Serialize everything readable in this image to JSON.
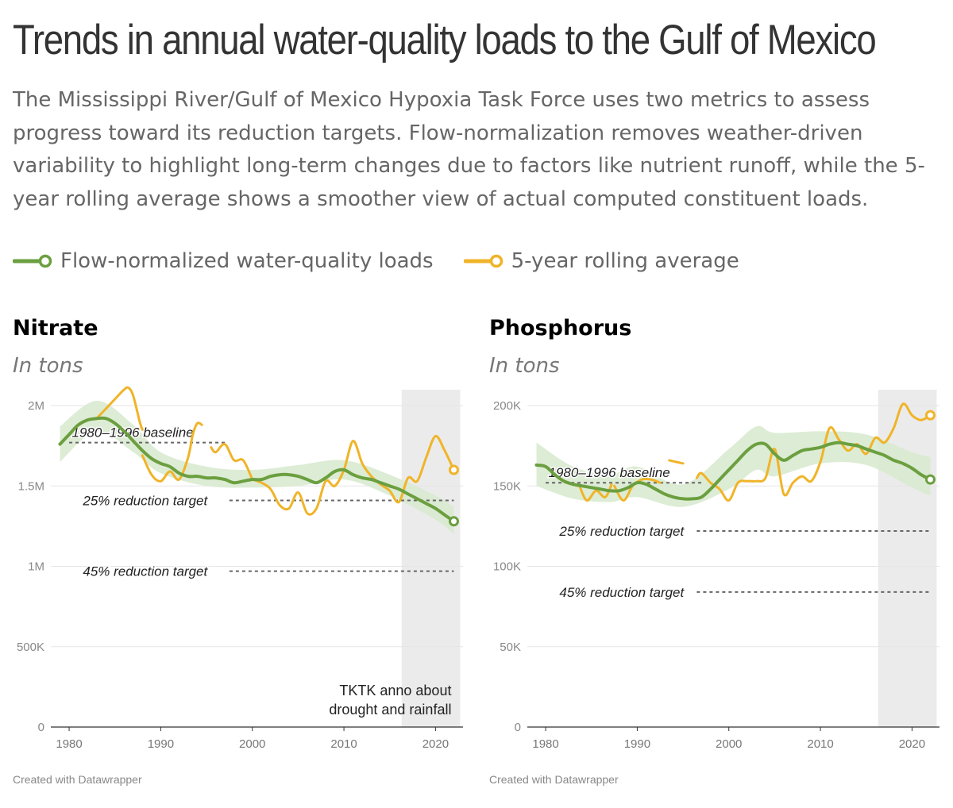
{
  "header": {
    "title": "Trends in annual water-quality loads to the Gulf of Mexico",
    "description": "The Mississippi River/Gulf of Mexico Hypoxia Task Force uses two metrics to assess progress toward its reduction targets. Flow-normalization removes weather-driven variability to highlight long-term changes due to factors like nutrient runoff, while the 5-year rolling average shows a smoother view of actual computed constituent loads."
  },
  "legend": [
    {
      "label": "Flow-normalized water-quality loads",
      "color": "#6b9f3f"
    },
    {
      "label": "5-year rolling average",
      "color": "#f0b429"
    }
  ],
  "colors": {
    "flow": "#6b9f3f",
    "band": "#d9ead0",
    "rolling": "#f0b429",
    "shade": "#ebebeb",
    "ref": "#666666"
  },
  "chart_data": [
    {
      "type": "line",
      "title": "Nitrate",
      "subtitle": "In tons",
      "credit": "Created with Datawrapper",
      "xlim": [
        1978,
        2023
      ],
      "ylim": [
        0,
        2000000
      ],
      "xticks": [
        1980,
        1990,
        2000,
        2010,
        2020
      ],
      "xtick_labels": [
        "1980",
        "1990",
        "2000",
        "2010",
        "2020"
      ],
      "yticks": [
        0,
        500000,
        1000000,
        1500000,
        2000000
      ],
      "ytick_labels": [
        "0",
        "500K",
        "1M",
        "1.5M",
        "2M"
      ],
      "shaded_range": [
        2017,
        2022
      ],
      "annotation": {
        "lines": [
          "TKTK anno about",
          "drought and rainfall"
        ]
      },
      "reference_lines": [
        {
          "label": "1980–1996 baseline",
          "value": 1770000,
          "x_start": 1980,
          "x_end": 1997,
          "label_x": 1980.3
        },
        {
          "label": "25% reduction target",
          "value": 1410000,
          "x_start": 1997.5,
          "x_end": 2022,
          "label_x": 1981.5
        },
        {
          "label": "45% reduction target",
          "value": 970000,
          "x_start": 1997.5,
          "x_end": 2022,
          "label_x": 1981.5
        }
      ],
      "series": [
        {
          "name": "Flow-normalized water-quality loads",
          "x": [
            1979,
            1980,
            1981,
            1982,
            1983,
            1984,
            1985,
            1986,
            1987,
            1988,
            1989,
            1990,
            1991,
            1992,
            1993,
            1994,
            1995,
            1996,
            1997,
            1998,
            1999,
            2000,
            2001,
            2002,
            2003,
            2004,
            2005,
            2006,
            2007,
            2008,
            2009,
            2010,
            2011,
            2012,
            2013,
            2014,
            2015,
            2016,
            2017,
            2018,
            2019,
            2020,
            2021,
            2022
          ],
          "y": [
            1760000,
            1820000,
            1880000,
            1910000,
            1920000,
            1920000,
            1890000,
            1840000,
            1780000,
            1720000,
            1670000,
            1640000,
            1620000,
            1580000,
            1560000,
            1560000,
            1550000,
            1550000,
            1540000,
            1520000,
            1530000,
            1540000,
            1540000,
            1560000,
            1570000,
            1570000,
            1560000,
            1540000,
            1520000,
            1550000,
            1590000,
            1600000,
            1570000,
            1550000,
            1540000,
            1520000,
            1500000,
            1480000,
            1450000,
            1420000,
            1390000,
            1360000,
            1320000,
            1280000
          ]
        },
        {
          "name": "Flow-normalized range",
          "x": [
            1979,
            1983,
            1987,
            1990,
            1995,
            2000,
            2005,
            2010,
            2015,
            2020,
            2022
          ],
          "low": [
            1650000,
            1840000,
            1710000,
            1580000,
            1500000,
            1490000,
            1500000,
            1540000,
            1440000,
            1290000,
            1200000
          ],
          "high": [
            1870000,
            2030000,
            1880000,
            1710000,
            1620000,
            1600000,
            1630000,
            1660000,
            1570000,
            1440000,
            1370000
          ]
        },
        {
          "name": "5-year rolling average",
          "segments": [
            {
              "x": [
                1983,
                1984,
                1985,
                1986,
                1986.5,
                1987,
                1987.7,
                1988
              ],
              "y": [
                1920000,
                1980000,
                2040000,
                2100000,
                2110000,
                2060000,
                1900000,
                1850000
              ]
            },
            {
              "x": [
                1988,
                1989,
                1990,
                1991,
                1992,
                1993,
                1993.5,
                1994,
                1994.5
              ],
              "y": [
                1690000,
                1570000,
                1530000,
                1590000,
                1540000,
                1680000,
                1820000,
                1890000,
                1880000
              ]
            },
            {
              "x": [
                1995.5,
                1996,
                1997,
                1998,
                1999,
                2000
              ],
              "y": [
                1740000,
                1710000,
                1760000,
                1660000,
                1660000,
                1540000
              ]
            },
            {
              "x": [
                2000,
                2001,
                2002,
                2003,
                2004,
                2005,
                2006,
                2007,
                2008,
                2009,
                2010,
                2011,
                2012,
                2013,
                2014,
                2015,
                2016,
                2017,
                2018,
                2019,
                2020,
                2021,
                2022
              ],
              "y": [
                1540000,
                1520000,
                1480000,
                1380000,
                1360000,
                1460000,
                1330000,
                1360000,
                1530000,
                1500000,
                1600000,
                1780000,
                1640000,
                1560000,
                1510000,
                1470000,
                1400000,
                1550000,
                1530000,
                1680000,
                1810000,
                1720000,
                1600000
              ]
            }
          ]
        }
      ]
    },
    {
      "type": "line",
      "title": "Phosphorus",
      "subtitle": "In tons",
      "credit": "Created with Datawrapper",
      "xlim": [
        1978,
        2023
      ],
      "ylim": [
        0,
        200000
      ],
      "xticks": [
        1980,
        1990,
        2000,
        2010,
        2020
      ],
      "xtick_labels": [
        "1980",
        "1990",
        "2000",
        "2010",
        "2020"
      ],
      "yticks": [
        0,
        50000,
        100000,
        150000,
        200000
      ],
      "ytick_labels": [
        "0",
        "50K",
        "100K",
        "150K",
        "200K"
      ],
      "shaded_range": [
        2017,
        2022
      ],
      "reference_lines": [
        {
          "label": "1980–1996 baseline",
          "value": 152000,
          "x_start": 1980,
          "x_end": 1997,
          "label_x": 1980.3
        },
        {
          "label": "25% reduction target",
          "value": 122000,
          "x_start": 1996.5,
          "x_end": 2022,
          "label_x": 1981.5
        },
        {
          "label": "45% reduction target",
          "value": 84000,
          "x_start": 1996.5,
          "x_end": 2022,
          "label_x": 1981.5
        }
      ],
      "series": [
        {
          "name": "Flow-normalized water-quality loads",
          "x": [
            1979,
            1980,
            1981,
            1982,
            1983,
            1984,
            1985,
            1986,
            1987,
            1988,
            1989,
            1990,
            1991,
            1992,
            1993,
            1994,
            1995,
            1996,
            1997,
            1998,
            1999,
            2000,
            2001,
            2002,
            2003,
            2004,
            2005,
            2006,
            2007,
            2008,
            2009,
            2010,
            2011,
            2012,
            2013,
            2014,
            2015,
            2016,
            2017,
            2018,
            2019,
            2020,
            2021,
            2022
          ],
          "y": [
            163000,
            162000,
            157000,
            153000,
            151000,
            150000,
            149000,
            148000,
            147000,
            147000,
            149000,
            152000,
            151000,
            148000,
            145000,
            143000,
            142000,
            142000,
            143000,
            148000,
            154000,
            160000,
            166000,
            172000,
            176000,
            176000,
            170000,
            166000,
            169000,
            172000,
            173000,
            174000,
            176000,
            177000,
            176000,
            175000,
            173000,
            171000,
            169000,
            166000,
            164000,
            161000,
            157000,
            154000
          ]
        },
        {
          "name": "Flow-normalized range",
          "x": [
            1979,
            1983,
            1987,
            1990,
            1995,
            2000,
            2003,
            2005,
            2010,
            2015,
            2020,
            2022
          ],
          "low": [
            150000,
            142000,
            140000,
            143000,
            137000,
            148000,
            160000,
            156000,
            164000,
            163000,
            149000,
            144000
          ],
          "high": [
            177000,
            162000,
            157000,
            162000,
            151000,
            173000,
            187000,
            183000,
            184000,
            182000,
            171000,
            168000
          ]
        },
        {
          "name": "5-year rolling average",
          "segments": [
            {
              "x": [
                1983.7,
                1984.5,
                1985.5,
                1986.5,
                1987.2
              ],
              "y": [
                150000,
                141000,
                147000,
                143000,
                151000
              ]
            },
            {
              "x": [
                1987.5,
                1988.5,
                1989.5,
                1990.5,
                1991.5,
                1992.5
              ],
              "y": [
                150000,
                141000,
                150000,
                154000,
                154000,
                152000
              ]
            },
            {
              "x": [
                1993.5,
                1994.2,
                1995
              ],
              "y": [
                166000,
                165000,
                164000
              ]
            },
            {
              "x": [
                1996.5,
                1997,
                1998,
                1999,
                2000,
                2001,
                2002,
                2003,
                2004,
                2005,
                2006,
                2007,
                2008,
                2009,
                2010,
                2011,
                2012,
                2013,
                2014,
                2015,
                2016,
                2017,
                2018,
                2019,
                2020,
                2021,
                2022
              ],
              "y": [
                155000,
                158000,
                152000,
                148000,
                141000,
                152000,
                153000,
                153000,
                155000,
                173000,
                145000,
                152000,
                156000,
                153000,
                165000,
                186000,
                179000,
                172000,
                176000,
                170000,
                180000,
                177000,
                186000,
                201000,
                194000,
                191000,
                194000
              ]
            }
          ]
        }
      ]
    }
  ]
}
